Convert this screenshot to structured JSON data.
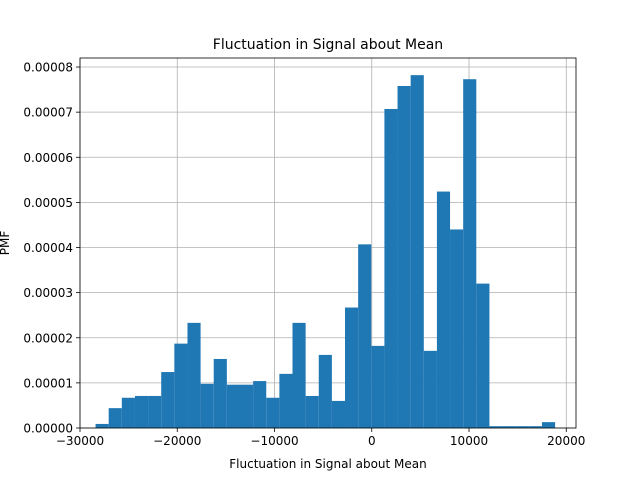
{
  "chart_data": {
    "type": "bar",
    "title": "Fluctuation in Signal about Mean",
    "xlabel": "Fluctuation in Signal about Mean",
    "ylabel": "PMF",
    "xlim": [
      -30000,
      21000
    ],
    "ylim": [
      0,
      8.2e-05
    ],
    "xticks": [
      -30000,
      -20000,
      -10000,
      0,
      10000,
      20000
    ],
    "xtick_labels": [
      "−30000",
      "−20000",
      "−10000",
      "0",
      "10000",
      "20000"
    ],
    "yticks": [
      0,
      1e-05,
      2e-05,
      3e-05,
      4e-05,
      5e-05,
      6e-05,
      7e-05,
      8e-05
    ],
    "ytick_labels": [
      "0.00000",
      "0.00001",
      "0.00002",
      "0.00003",
      "0.00004",
      "0.00005",
      "0.00006",
      "0.00007",
      "0.00008"
    ],
    "grid": true,
    "bar_color": "#1f77b4",
    "bin_edges": [
      -28400,
      -27050,
      -25700,
      -24350,
      -23000,
      -21650,
      -20300,
      -18950,
      -17600,
      -16250,
      -14900,
      -13550,
      -12200,
      -10850,
      -9500,
      -8150,
      -6800,
      -5450,
      -4100,
      -2750,
      -1400,
      -50,
      1300,
      2650,
      4000,
      5350,
      6700,
      8050,
      9400,
      10750,
      12100,
      13450,
      14800,
      16150,
      17500,
      18850
    ],
    "values": [
      9e-07,
      4.4e-06,
      6.7e-06,
      7.1e-06,
      7.1e-06,
      1.24e-05,
      1.87e-05,
      2.33e-05,
      9.8e-06,
      1.53e-05,
      9.6e-06,
      9.6e-06,
      1.04e-05,
      6.7e-06,
      1.2e-05,
      2.33e-05,
      7.1e-06,
      1.62e-05,
      6e-06,
      2.67e-05,
      4.07e-05,
      1.82e-05,
      7.07e-05,
      7.58e-05,
      7.82e-05,
      1.71e-05,
      5.24e-05,
      4.4e-05,
      7.73e-05,
      3.2e-05,
      4e-07,
      4e-07,
      4e-07,
      4e-07,
      1.3e-06
    ]
  }
}
